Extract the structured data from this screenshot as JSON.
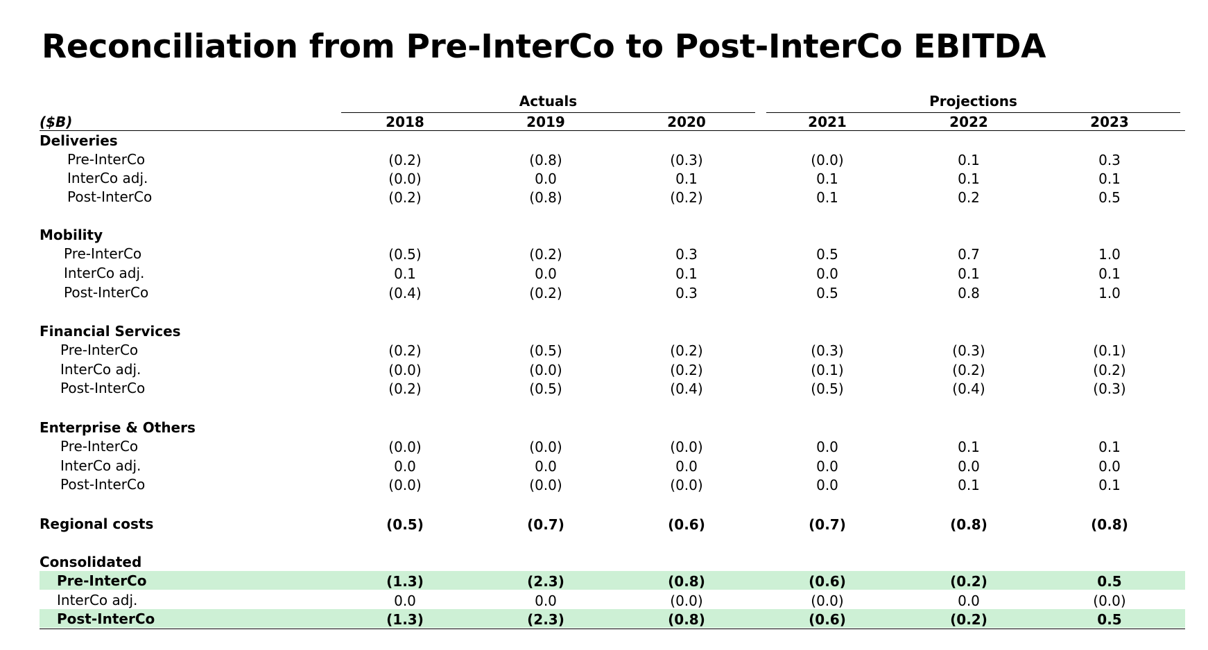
{
  "title": "Reconciliation from Pre-InterCo to Post-InterCo EBITDA",
  "unit_label": "($B)",
  "groups": {
    "actuals": "Actuals",
    "projections": "Projections"
  },
  "years": [
    "2018",
    "2019",
    "2020",
    "2021",
    "2022",
    "2023"
  ],
  "sections": [
    {
      "name": "Deliveries",
      "rows": [
        {
          "label": "Pre-InterCo",
          "values": [
            "(0.2)",
            "(0.8)",
            "(0.3)",
            "(0.0)",
            "0.1",
            "0.3"
          ]
        },
        {
          "label": "InterCo adj.",
          "values": [
            "(0.0)",
            "0.0",
            "0.1",
            "0.1",
            "0.1",
            "0.1"
          ]
        },
        {
          "label": "Post-InterCo",
          "values": [
            "(0.2)",
            "(0.8)",
            "(0.2)",
            "0.1",
            "0.2",
            "0.5"
          ]
        }
      ]
    },
    {
      "name": "Mobility",
      "rows": [
        {
          "label": "Pre-InterCo",
          "values": [
            "(0.5)",
            "(0.2)",
            "0.3",
            "0.5",
            "0.7",
            "1.0"
          ]
        },
        {
          "label": "InterCo adj.",
          "values": [
            "0.1",
            "0.0",
            "0.1",
            "0.0",
            "0.1",
            "0.1"
          ]
        },
        {
          "label": "Post-InterCo",
          "values": [
            "(0.4)",
            "(0.2)",
            "0.3",
            "0.5",
            "0.8",
            "1.0"
          ]
        }
      ]
    },
    {
      "name": "Financial Services",
      "rows": [
        {
          "label": "Pre-InterCo",
          "values": [
            "(0.2)",
            "(0.5)",
            "(0.2)",
            "(0.3)",
            "(0.3)",
            "(0.1)"
          ]
        },
        {
          "label": "InterCo adj.",
          "values": [
            "(0.0)",
            "(0.0)",
            "(0.2)",
            "(0.1)",
            "(0.2)",
            "(0.2)"
          ]
        },
        {
          "label": "Post-InterCo",
          "values": [
            "(0.2)",
            "(0.5)",
            "(0.4)",
            "(0.5)",
            "(0.4)",
            "(0.3)"
          ]
        }
      ]
    },
    {
      "name": "Enterprise & Others",
      "rows": [
        {
          "label": "Pre-InterCo",
          "values": [
            "(0.0)",
            "(0.0)",
            "(0.0)",
            "0.0",
            "0.1",
            "0.1"
          ]
        },
        {
          "label": "InterCo adj.",
          "values": [
            "0.0",
            "0.0",
            "0.0",
            "0.0",
            "0.0",
            "0.0"
          ]
        },
        {
          "label": "Post-InterCo",
          "values": [
            "(0.0)",
            "(0.0)",
            "(0.0)",
            "0.0",
            "0.1",
            "0.1"
          ]
        }
      ]
    }
  ],
  "regional_costs": {
    "label": "Regional costs",
    "values": [
      "(0.5)",
      "(0.7)",
      "(0.6)",
      "(0.7)",
      "(0.8)",
      "(0.8)"
    ]
  },
  "consolidated": {
    "name": "Consolidated",
    "rows": [
      {
        "label": "Pre-InterCo",
        "values": [
          "(1.3)",
          "(2.3)",
          "(0.8)",
          "(0.6)",
          "(0.2)",
          "0.5"
        ]
      },
      {
        "label": "InterCo adj.",
        "values": [
          "0.0",
          "0.0",
          "(0.0)",
          "(0.0)",
          "0.0",
          "(0.0)"
        ]
      },
      {
        "label": "Post-InterCo",
        "values": [
          "(1.3)",
          "(2.3)",
          "(0.8)",
          "(0.6)",
          "(0.2)",
          "0.5"
        ]
      }
    ]
  },
  "colors": {
    "highlight": "#cdf0d5",
    "text": "#000000"
  }
}
